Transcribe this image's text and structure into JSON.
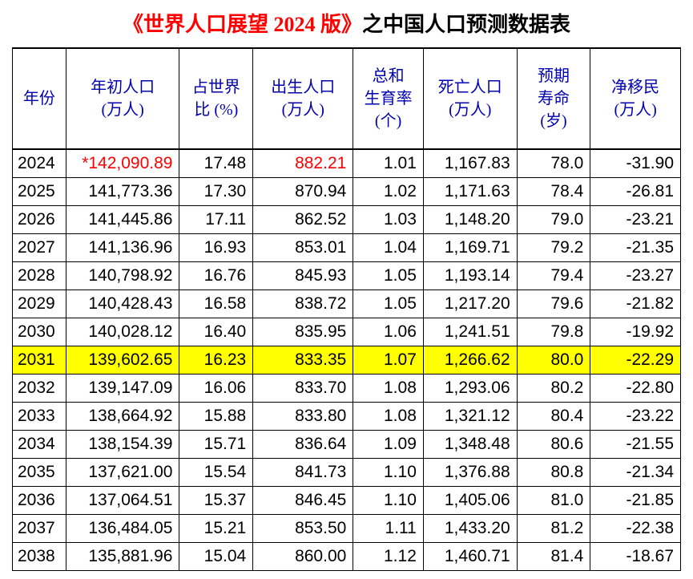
{
  "title": {
    "red_part": "《世界人口展望 2024 版》",
    "black_part": "之中国人口预测数据表",
    "red_color": "#ff0000",
    "black_color": "#000000"
  },
  "table": {
    "header_color": "#0000b0",
    "highlight_color": "#ffff00",
    "border_color": "#000000",
    "columns": [
      {
        "key": "year",
        "label": "年份"
      },
      {
        "key": "population",
        "label": "年初人口\n(万人)"
      },
      {
        "key": "world_pct",
        "label": "占世界\n比 (%)"
      },
      {
        "key": "births",
        "label": "出生人口\n(万人)"
      },
      {
        "key": "fertility",
        "label": "总和\n生育率\n(个)"
      },
      {
        "key": "deaths",
        "label": "死亡人口\n(万人)"
      },
      {
        "key": "life_exp",
        "label": "预期\n寿命\n(岁)"
      },
      {
        "key": "migration",
        "label": "净移民\n(万人)"
      }
    ],
    "rows": [
      {
        "year": "2024",
        "population": "142,090.89",
        "world_pct": "17.48",
        "births": "882.21",
        "fertility": "1.01",
        "deaths": "1,167.83",
        "life_exp": "78.0",
        "migration": "-31.90",
        "red_cells": [
          "population",
          "births"
        ],
        "asterisk": true,
        "highlight": false
      },
      {
        "year": "2025",
        "population": "141,773.36",
        "world_pct": "17.30",
        "births": "870.94",
        "fertility": "1.02",
        "deaths": "1,171.63",
        "life_exp": "78.4",
        "migration": "-26.81",
        "red_cells": [],
        "asterisk": false,
        "highlight": false
      },
      {
        "year": "2026",
        "population": "141,445.86",
        "world_pct": "17.11",
        "births": "862.52",
        "fertility": "1.03",
        "deaths": "1,148.20",
        "life_exp": "79.0",
        "migration": "-23.21",
        "red_cells": [],
        "asterisk": false,
        "highlight": false
      },
      {
        "year": "2027",
        "population": "141,136.96",
        "world_pct": "16.93",
        "births": "853.01",
        "fertility": "1.04",
        "deaths": "1,169.71",
        "life_exp": "79.2",
        "migration": "-21.35",
        "red_cells": [],
        "asterisk": false,
        "highlight": false
      },
      {
        "year": "2028",
        "population": "140,798.92",
        "world_pct": "16.76",
        "births": "845.93",
        "fertility": "1.05",
        "deaths": "1,193.14",
        "life_exp": "79.4",
        "migration": "-23.27",
        "red_cells": [],
        "asterisk": false,
        "highlight": false
      },
      {
        "year": "2029",
        "population": "140,428.43",
        "world_pct": "16.58",
        "births": "838.72",
        "fertility": "1.05",
        "deaths": "1,217.20",
        "life_exp": "79.6",
        "migration": "-21.82",
        "red_cells": [],
        "asterisk": false,
        "highlight": false
      },
      {
        "year": "2030",
        "population": "140,028.12",
        "world_pct": "16.40",
        "births": "835.95",
        "fertility": "1.06",
        "deaths": "1,241.51",
        "life_exp": "79.8",
        "migration": "-19.92",
        "red_cells": [],
        "asterisk": false,
        "highlight": false
      },
      {
        "year": "2031",
        "population": "139,602.65",
        "world_pct": "16.23",
        "births": "833.35",
        "fertility": "1.07",
        "deaths": "1,266.62",
        "life_exp": "80.0",
        "migration": "-22.29",
        "red_cells": [],
        "asterisk": false,
        "highlight": true
      },
      {
        "year": "2032",
        "population": "139,147.09",
        "world_pct": "16.06",
        "births": "833.70",
        "fertility": "1.08",
        "deaths": "1,293.06",
        "life_exp": "80.2",
        "migration": "-22.80",
        "red_cells": [],
        "asterisk": false,
        "highlight": false
      },
      {
        "year": "2033",
        "population": "138,664.92",
        "world_pct": "15.88",
        "births": "833.80",
        "fertility": "1.08",
        "deaths": "1,321.12",
        "life_exp": "80.4",
        "migration": "-23.22",
        "red_cells": [],
        "asterisk": false,
        "highlight": false
      },
      {
        "year": "2034",
        "population": "138,154.39",
        "world_pct": "15.71",
        "births": "836.64",
        "fertility": "1.09",
        "deaths": "1,348.48",
        "life_exp": "80.6",
        "migration": "-21.55",
        "red_cells": [],
        "asterisk": false,
        "highlight": false
      },
      {
        "year": "2035",
        "population": "137,621.00",
        "world_pct": "15.54",
        "births": "841.73",
        "fertility": "1.10",
        "deaths": "1,376.88",
        "life_exp": "80.8",
        "migration": "-21.34",
        "red_cells": [],
        "asterisk": false,
        "highlight": false
      },
      {
        "year": "2036",
        "population": "137,064.51",
        "world_pct": "15.37",
        "births": "846.45",
        "fertility": "1.10",
        "deaths": "1,405.06",
        "life_exp": "81.0",
        "migration": "-21.85",
        "red_cells": [],
        "asterisk": false,
        "highlight": false
      },
      {
        "year": "2037",
        "population": "136,484.05",
        "world_pct": "15.21",
        "births": "853.50",
        "fertility": "1.11",
        "deaths": "1,433.20",
        "life_exp": "81.2",
        "migration": "-22.38",
        "red_cells": [],
        "asterisk": false,
        "highlight": false
      },
      {
        "year": "2038",
        "population": "135,881.96",
        "world_pct": "15.04",
        "births": "860.00",
        "fertility": "1.12",
        "deaths": "1,460.71",
        "life_exp": "81.4",
        "migration": "-18.67",
        "red_cells": [],
        "asterisk": false,
        "highlight": false
      }
    ]
  }
}
